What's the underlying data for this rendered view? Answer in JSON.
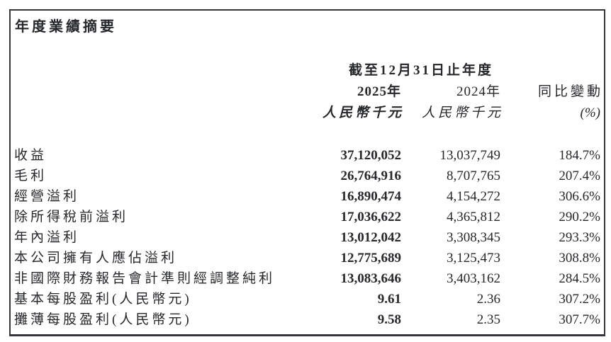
{
  "palette": {
    "text_color": "#26282b",
    "border_color": "#33363a",
    "background": "#ffffff"
  },
  "title": "年度業績摘要",
  "table": {
    "period_header": "截至12月31日止年度",
    "columns": [
      {
        "label": "2025年",
        "sub": "人民幣千元"
      },
      {
        "label": "2024年",
        "sub": "人民幣千元"
      },
      {
        "label": "同比變動",
        "sub": "(%)"
      }
    ],
    "rows": [
      {
        "label": "收益",
        "v2025": "37,120,052",
        "v2024": "13,037,749",
        "change": "184.7%"
      },
      {
        "label": "毛利",
        "v2025": "26,764,916",
        "v2024": "8,707,765",
        "change": "207.4%"
      },
      {
        "label": "經營溢利",
        "v2025": "16,890,474",
        "v2024": "4,154,272",
        "change": "306.6%"
      },
      {
        "label": "除所得稅前溢利",
        "v2025": "17,036,622",
        "v2024": "4,365,812",
        "change": "290.2%"
      },
      {
        "label": "年內溢利",
        "v2025": "13,012,042",
        "v2024": "3,308,345",
        "change": "293.3%"
      },
      {
        "label": "本公司擁有人應佔溢利",
        "v2025": "12,775,689",
        "v2024": "3,125,473",
        "change": "308.8%"
      },
      {
        "label": "非國際財務報告會計準則經調整純利",
        "v2025": "13,083,646",
        "v2024": "3,403,162",
        "change": "284.5%"
      },
      {
        "label": "基本每股盈利(人民幣元)",
        "v2025": "9.61",
        "v2024": "2.36",
        "change": "307.2%"
      },
      {
        "label": "攤薄每股盈利(人民幣元)",
        "v2025": "9.58",
        "v2024": "2.35",
        "change": "307.7%"
      }
    ]
  }
}
